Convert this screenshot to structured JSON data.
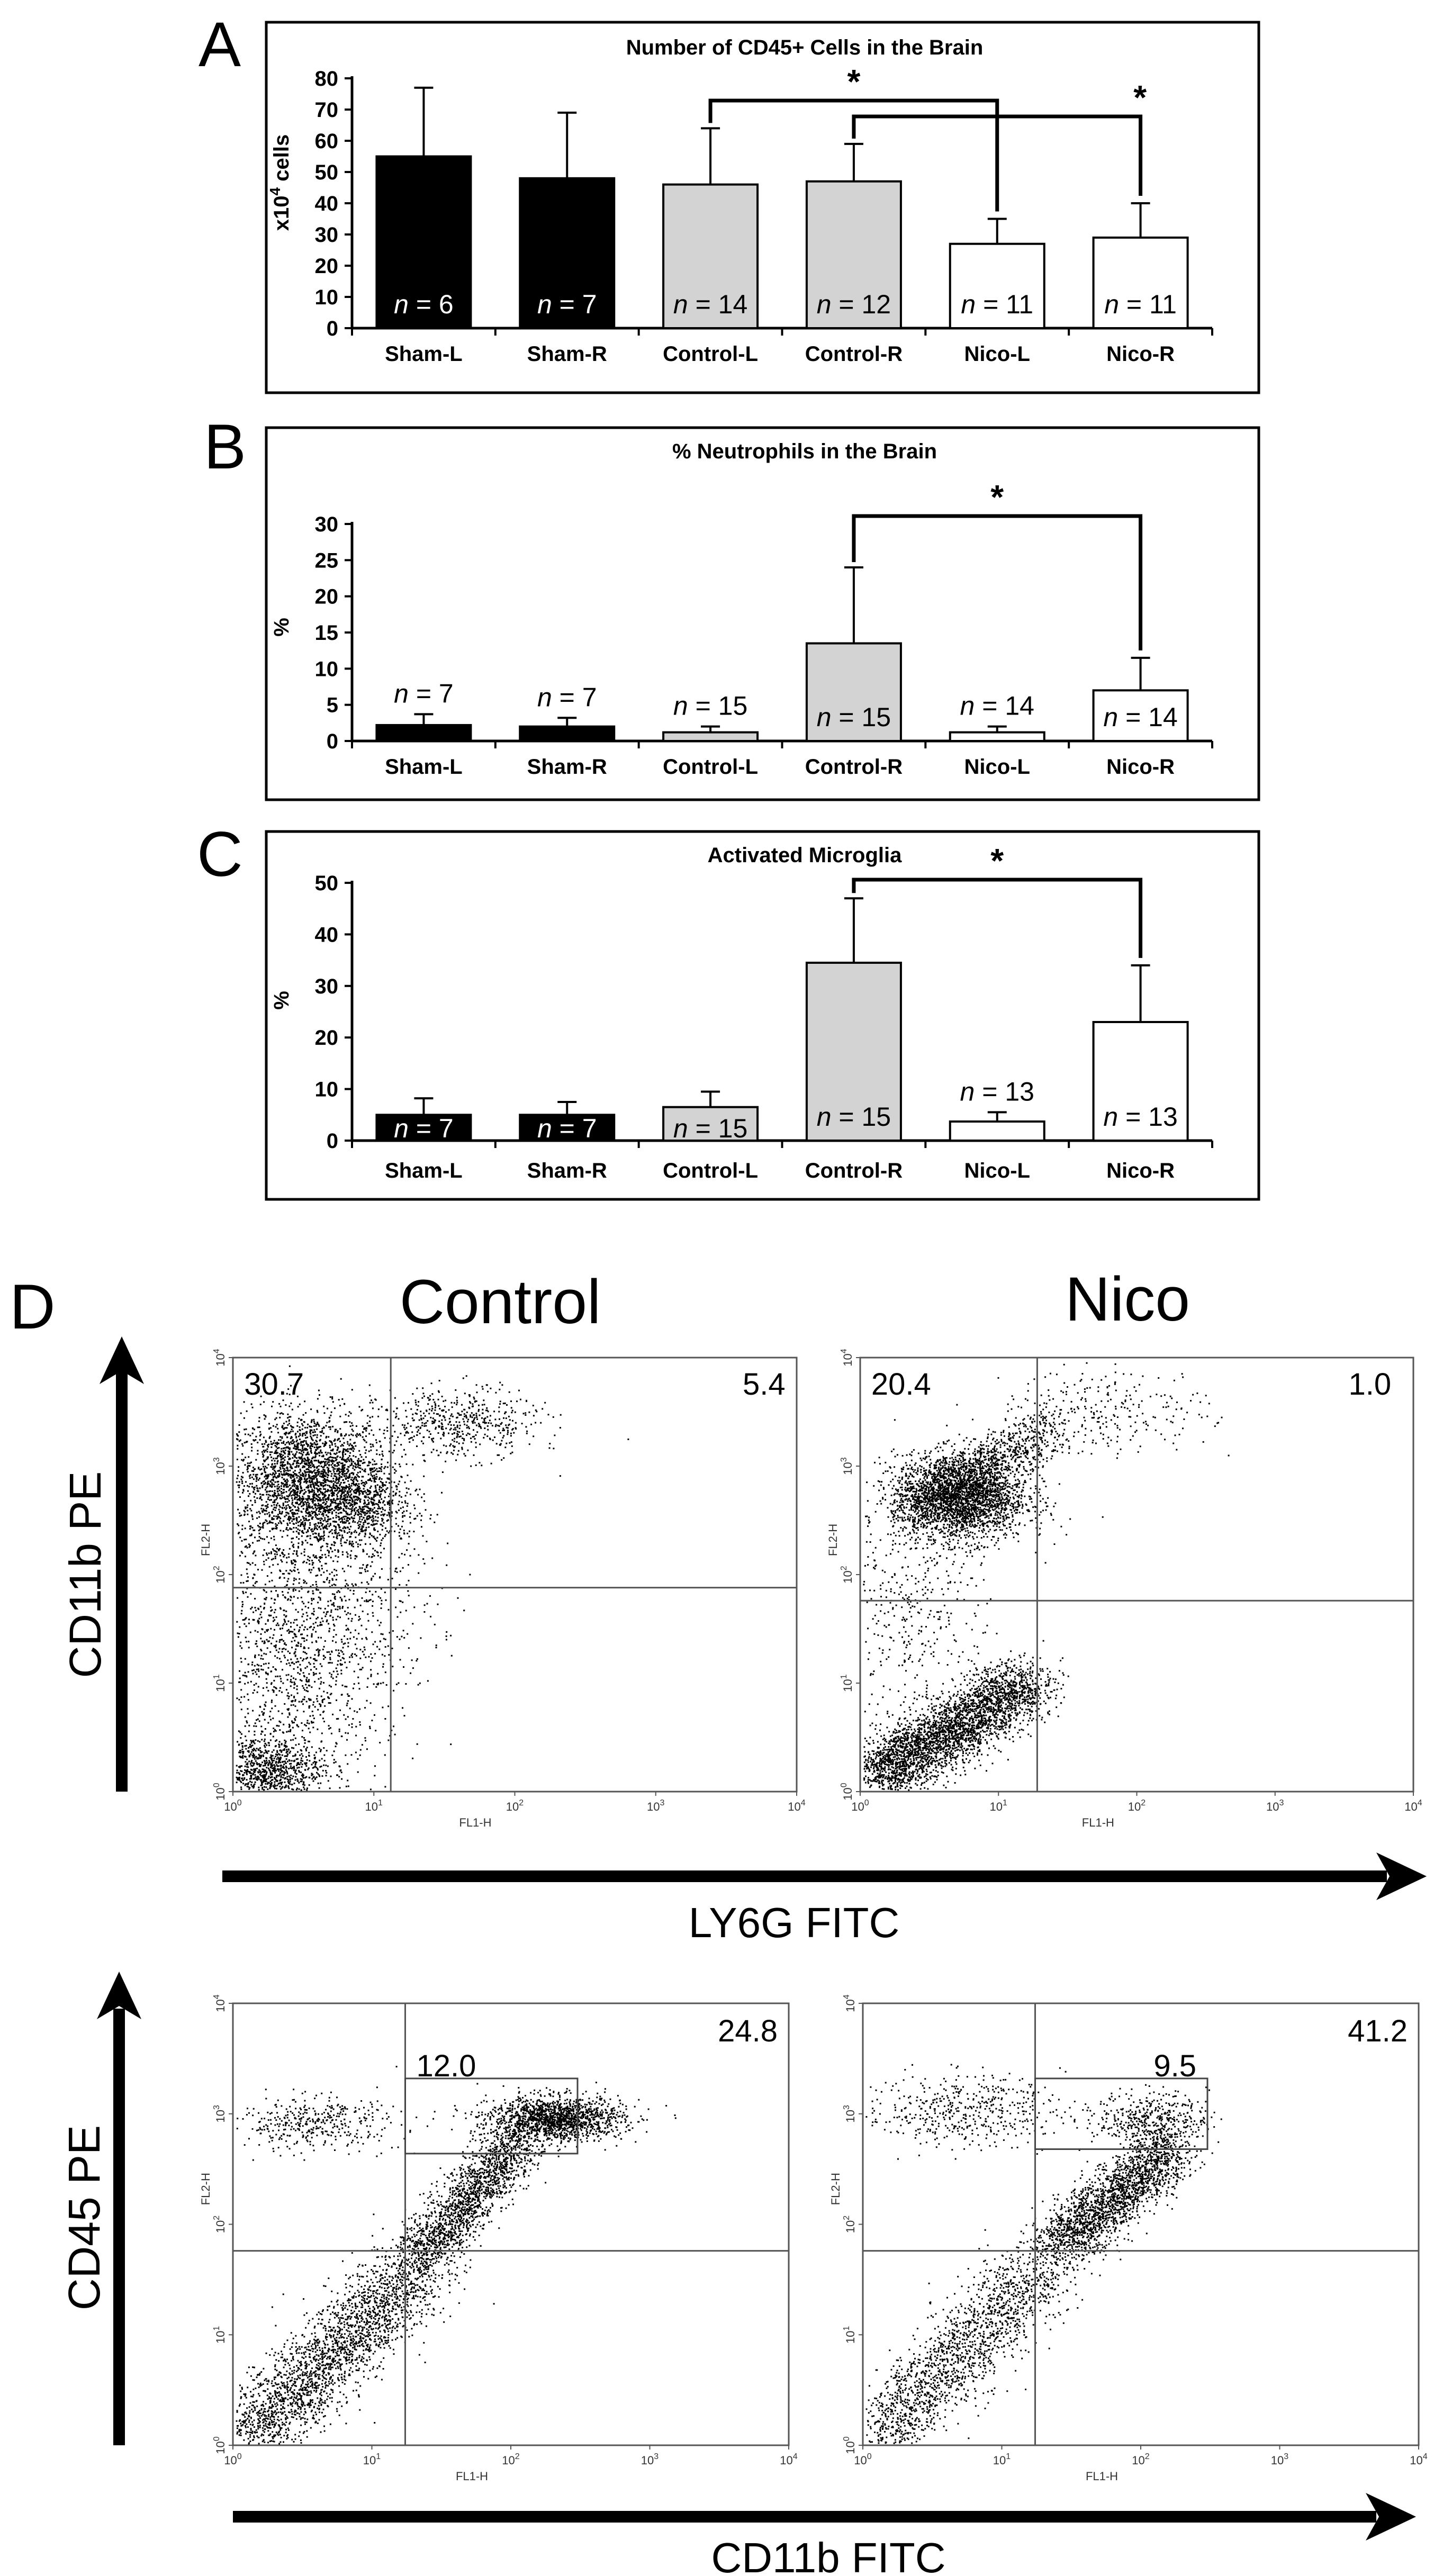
{
  "chart_data": [
    {
      "panel_label": "A",
      "type": "bar",
      "title": "Number of CD45+ Cells in the Brain",
      "ylabel_prefix": "x10",
      "ylabel_sup": "4",
      "ylabel_suffix": " cells",
      "ylim": [
        0,
        80
      ],
      "yticks": [
        0,
        10,
        20,
        30,
        40,
        50,
        60,
        70,
        80
      ],
      "categories": [
        "Sham-L",
        "Sham-R",
        "Control-L",
        "Control-R",
        "Nico-L",
        "Nico-R"
      ],
      "values": [
        55,
        48,
        46,
        47,
        27,
        29
      ],
      "errors": [
        22,
        21,
        18,
        12,
        8,
        11
      ],
      "n_prefix": "n",
      "n_labels": [
        "= 6",
        "= 7",
        "= 14",
        "= 12",
        "= 11",
        "= 11"
      ],
      "colors": [
        "#000000",
        "#000000",
        "#d3d3d3",
        "#d3d3d3",
        "#ffffff",
        "#ffffff"
      ],
      "significance": [
        {
          "from": 2,
          "to": 4,
          "label": "*"
        },
        {
          "from": 3,
          "to": 5,
          "label": "*"
        }
      ]
    },
    {
      "panel_label": "B",
      "type": "bar",
      "title": "% Neutrophils in the Brain",
      "ylabel": "%",
      "ylim": [
        0,
        30
      ],
      "yticks": [
        0,
        5,
        10,
        15,
        20,
        25,
        30
      ],
      "categories": [
        "Sham-L",
        "Sham-R",
        "Control-L",
        "Control-R",
        "Nico-L",
        "Nico-R"
      ],
      "values": [
        2.2,
        2.0,
        1.2,
        13.5,
        1.2,
        7.0
      ],
      "errors": [
        1.5,
        1.2,
        0.8,
        10.5,
        0.8,
        4.5
      ],
      "n_prefix": "n",
      "n_labels": [
        "= 7",
        "= 7",
        "= 15",
        "= 15",
        "= 14",
        "= 14"
      ],
      "colors": [
        "#000000",
        "#000000",
        "#d3d3d3",
        "#d3d3d3",
        "#ffffff",
        "#ffffff"
      ],
      "significance": [
        {
          "from": 3,
          "to": 5,
          "label": "*"
        }
      ]
    },
    {
      "panel_label": "C",
      "type": "bar",
      "title": "Activated Microglia",
      "ylabel": "%",
      "ylim": [
        0,
        50
      ],
      "yticks": [
        0,
        10,
        20,
        30,
        40,
        50
      ],
      "categories": [
        "Sham-L",
        "Sham-R",
        "Control-L",
        "Control-R",
        "Nico-L",
        "Nico-R"
      ],
      "values": [
        5,
        5,
        6.5,
        34.5,
        3.7,
        23
      ],
      "errors": [
        3.2,
        2.5,
        3,
        12.5,
        1.8,
        11
      ],
      "n_prefix": "n",
      "n_labels": [
        "= 7",
        "= 7",
        "= 15",
        "= 15",
        "= 13",
        "= 13"
      ],
      "colors": [
        "#000000",
        "#000000",
        "#d3d3d3",
        "#d3d3d3",
        "#ffffff",
        "#ffffff"
      ],
      "significance": [
        {
          "from": 3,
          "to": 5,
          "label": "*"
        }
      ]
    },
    {
      "panel_label": "D",
      "type": "scatter",
      "column_titles": [
        "Control",
        "Nico"
      ],
      "row1": {
        "y_axis_title": "CD11b PE",
        "x_axis_title": "LY6G FITC",
        "plots": [
          {
            "name": "control",
            "ul": "30.7",
            "ur": "5.4"
          },
          {
            "name": "nico",
            "ul": "20.4",
            "ur": "1.0"
          }
        ]
      },
      "row2": {
        "y_axis_title": "CD45 PE",
        "x_axis_title": "CD11b FITC",
        "plots": [
          {
            "name": "control",
            "box": "12.0",
            "ur": "24.8"
          },
          {
            "name": "nico",
            "box": "9.5",
            "ur": "41.2"
          }
        ]
      },
      "x_channel": "FL1-H",
      "y_channel": "FL2-H",
      "log_tick_base": "10",
      "log_exponents": [
        "0",
        "1",
        "2",
        "3",
        "4"
      ]
    }
  ]
}
